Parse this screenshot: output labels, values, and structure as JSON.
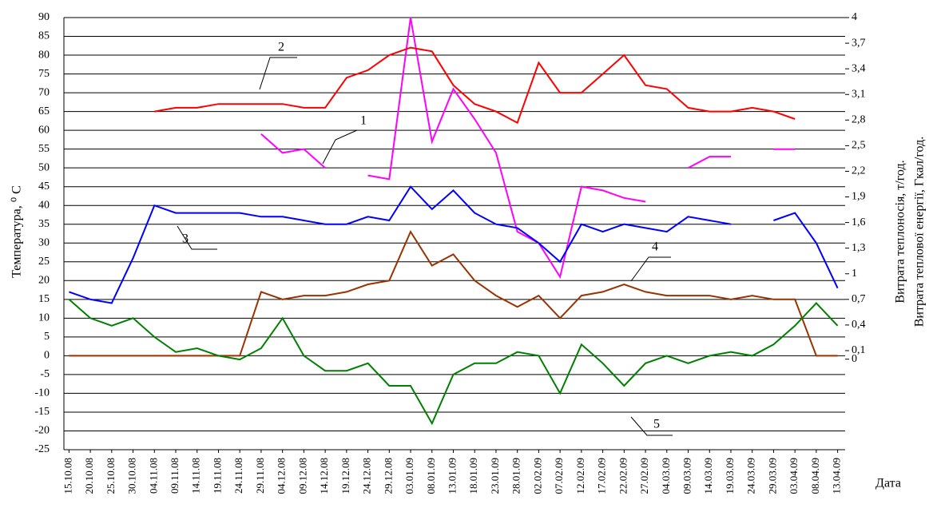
{
  "chart_data": {
    "type": "line",
    "y_label": "Температура, ⁰ C",
    "y2_labels": [
      "Витрата теплоносія, т/год.",
      "Витрата теплової енергії, Гкал/год."
    ],
    "x_label": "Дата",
    "categories": [
      "15.10.08",
      "20.10.08",
      "25.10.08",
      "30.10.08",
      "04.11.08",
      "09.11.08",
      "14.11.08",
      "19.11.08",
      "24.11.08",
      "29.11.08",
      "04.12.08",
      "09.12.08",
      "14.12.08",
      "19.12.08",
      "24.12.08",
      "29.12.08",
      "03.01.09",
      "08.01.09",
      "13.01.09",
      "18.01.09",
      "23.01.09",
      "28.01.09",
      "02.02.09",
      "07.02.09",
      "12.02.09",
      "17.02.09",
      "22.02.09",
      "27.02.09",
      "04.03.09",
      "09.03.09",
      "14.03.09",
      "19.03.09",
      "24.03.09",
      "29.03.09",
      "03.04.09",
      "08.04.09",
      "13.04.09"
    ],
    "series": [
      {
        "label": "1",
        "color": "#ff00ff",
        "values": [
          null,
          null,
          null,
          null,
          null,
          null,
          null,
          null,
          null,
          59,
          54,
          55,
          50,
          null,
          48,
          47,
          90,
          57,
          71,
          63,
          54,
          33,
          30,
          21,
          45,
          44,
          42,
          41,
          null,
          50,
          53,
          53,
          null,
          55,
          55,
          null,
          null
        ]
      },
      {
        "label": "2",
        "color": "#ff0000",
        "values": [
          null,
          null,
          null,
          null,
          65,
          66,
          66,
          67,
          67,
          67,
          67,
          66,
          66,
          74,
          76,
          80,
          82,
          81,
          72,
          67,
          65,
          62,
          78,
          70,
          70,
          75,
          80,
          72,
          71,
          66,
          65,
          65,
          66,
          65,
          63,
          null,
          null
        ]
      },
      {
        "label": "3",
        "color": "#0000ff",
        "values": [
          17,
          15,
          14,
          26,
          40,
          38,
          38,
          38,
          38,
          37,
          37,
          36,
          35,
          35,
          37,
          36,
          45,
          39,
          44,
          38,
          35,
          34,
          30,
          25,
          35,
          33,
          35,
          34,
          33,
          37,
          36,
          35,
          null,
          36,
          38,
          30,
          18
        ]
      },
      {
        "label": "4",
        "color": "#993300",
        "values": [
          0,
          0,
          0,
          0,
          0,
          0,
          0,
          0,
          0,
          17,
          15,
          16,
          16,
          17,
          19,
          20,
          33,
          24,
          27,
          20,
          16,
          13,
          16,
          10,
          16,
          17,
          19,
          17,
          16,
          16,
          16,
          15,
          16,
          15,
          15,
          0,
          0
        ]
      },
      {
        "label": "5",
        "color": "#008000",
        "values": [
          15,
          10,
          8,
          10,
          5,
          1,
          2,
          0,
          -1,
          2,
          10,
          0,
          -4,
          -4,
          -2,
          -8,
          -8,
          -18,
          -5,
          -2,
          -2,
          1,
          0,
          -10,
          3,
          -2,
          -8,
          -2,
          0,
          -2,
          0,
          1,
          0,
          3,
          8,
          14,
          8
        ]
      }
    ],
    "ylim": [
      -25,
      90
    ],
    "yticks": [
      -25,
      -20,
      -15,
      -10,
      -5,
      0,
      5,
      10,
      15,
      20,
      25,
      30,
      35,
      40,
      45,
      50,
      55,
      60,
      65,
      70,
      75,
      80,
      85,
      90
    ],
    "y2lim": [
      -1.06,
      4
    ],
    "y2ticks": [
      0,
      {
        "value": 0.1,
        "label": "0,1"
      },
      {
        "value": 0.4,
        "label": "0,4"
      },
      {
        "value": 0.7,
        "label": "0,7"
      },
      1,
      {
        "value": 1.3,
        "label": "1,3"
      },
      {
        "value": 1.6,
        "label": "1,6"
      },
      {
        "value": 1.9,
        "label": "1,9"
      },
      {
        "value": 2.2,
        "label": "2,2"
      },
      {
        "value": 2.5,
        "label": "2,5"
      },
      {
        "value": 2.8,
        "label": "2,8"
      },
      {
        "value": 3.1,
        "label": "3,1"
      },
      {
        "value": 3.4,
        "label": "3,4"
      },
      {
        "value": 3.7,
        "label": "3,7"
      },
      4
    ],
    "grid": true
  }
}
